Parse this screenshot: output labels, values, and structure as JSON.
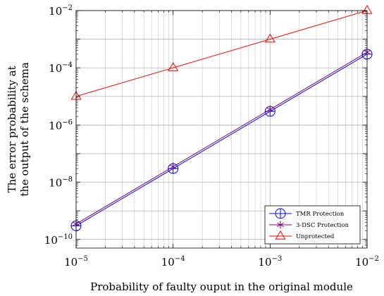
{
  "chart_data": {
    "type": "line",
    "xlabel": "Probability of faulty ouput in the original module",
    "ylabel_lines": [
      "The error probability at",
      "the output of the schema"
    ],
    "x_scale": "log",
    "y_scale": "log",
    "xlim": [
      1e-05,
      0.01
    ],
    "ylim": [
      5e-11,
      0.01
    ],
    "x_ticks": [
      {
        "value": 1e-05,
        "base": "10",
        "exp": "−5"
      },
      {
        "value": 0.0001,
        "base": "10",
        "exp": "−4"
      },
      {
        "value": 0.001,
        "base": "10",
        "exp": "−3"
      },
      {
        "value": 0.01,
        "base": "10",
        "exp": "−2"
      }
    ],
    "y_ticks": [
      {
        "value": 1e-10,
        "base": "10",
        "exp": "−10"
      },
      {
        "value": 1e-08,
        "base": "10",
        "exp": "−8"
      },
      {
        "value": 1e-06,
        "base": "10",
        "exp": "−6"
      },
      {
        "value": 0.0001,
        "base": "10",
        "exp": "−4"
      },
      {
        "value": 0.01,
        "base": "10",
        "exp": "−2"
      }
    ],
    "grid": true,
    "legend_position": "bottom-right",
    "series": [
      {
        "name": "TMR Protection",
        "color": "#0000ff",
        "marker": "circle-plus",
        "x": [
          1e-05,
          0.0001,
          0.001,
          0.01
        ],
        "y": [
          3e-10,
          3e-08,
          3e-06,
          0.0003
        ]
      },
      {
        "name": "3-DSC Protection",
        "color": "#7f007f",
        "marker": "asterisk",
        "x": [
          1e-05,
          0.0001,
          0.001,
          0.01
        ],
        "y": [
          3.5e-10,
          3.5e-08,
          3.5e-06,
          0.00035
        ]
      },
      {
        "name": "Unprotected",
        "color": "#ff0000",
        "marker": "triangle",
        "x": [
          1e-05,
          0.0001,
          0.001,
          0.01
        ],
        "y": [
          1e-05,
          0.0001,
          0.001,
          0.01
        ]
      }
    ]
  }
}
